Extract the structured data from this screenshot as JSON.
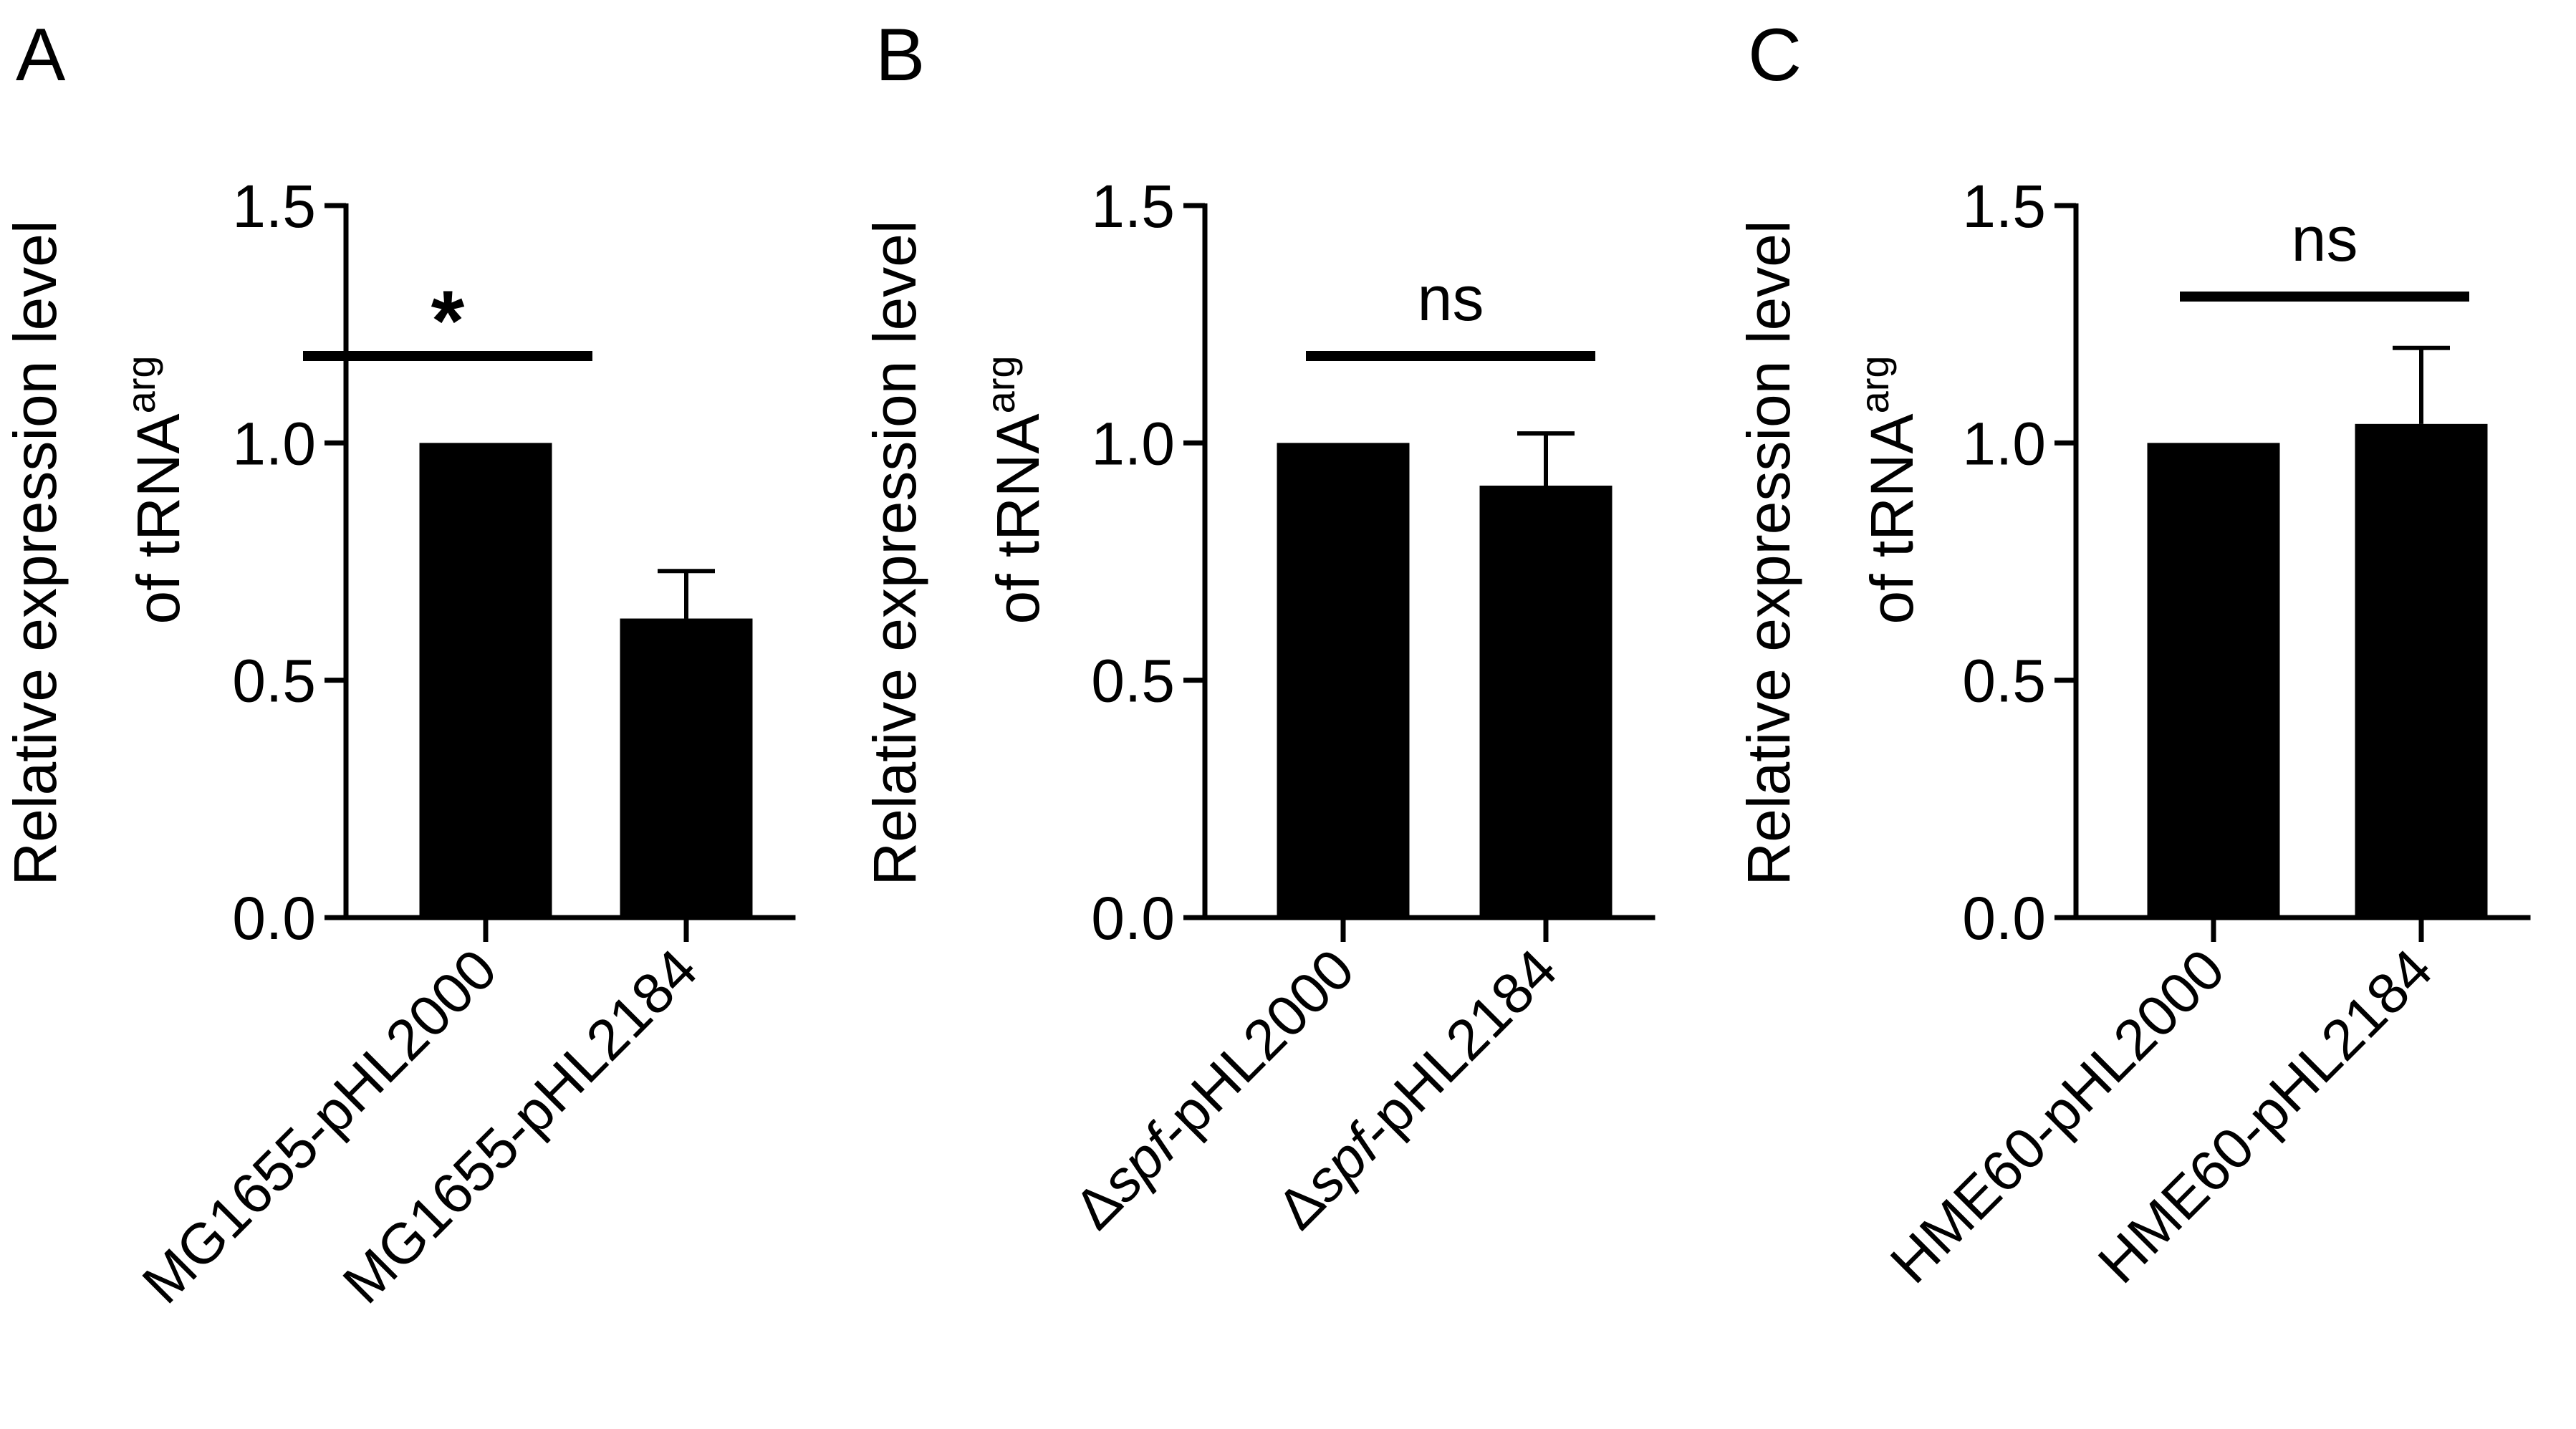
{
  "chart_data": [
    {
      "panel": "A",
      "type": "bar",
      "ylabel_line1": "Relative expression level",
      "ylabel_line2": "of tRNA",
      "ylabel_superscript": "arg",
      "ylim": [
        0,
        1.5
      ],
      "yticks": [
        "0.0",
        "0.5",
        "1.0",
        "1.5"
      ],
      "categories": [
        {
          "prefix": "",
          "italic": "",
          "suffix": "MG1655-pHL2000"
        },
        {
          "prefix": "",
          "italic": "",
          "suffix": "MG1655-pHL2184"
        }
      ],
      "values": [
        1.0,
        0.63
      ],
      "error": [
        0,
        0.1
      ],
      "significance": "*",
      "color": "#000000"
    },
    {
      "panel": "B",
      "type": "bar",
      "ylabel_line1": "Relative expression level",
      "ylabel_line2": "of tRNA",
      "ylabel_superscript": "arg",
      "ylim": [
        0,
        1.5
      ],
      "yticks": [
        "0.0",
        "0.5",
        "1.0",
        "1.5"
      ],
      "categories": [
        {
          "prefix": "Δ",
          "italic": "spf",
          "suffix": "-pHL2000"
        },
        {
          "prefix": "Δ",
          "italic": "spf",
          "suffix": "-pHL2184"
        }
      ],
      "values": [
        1.0,
        0.91
      ],
      "error": [
        0,
        0.11
      ],
      "significance": "ns",
      "color": "#000000"
    },
    {
      "panel": "C",
      "type": "bar",
      "ylabel_line1": "Relative expression level",
      "ylabel_line2": "of tRNA",
      "ylabel_superscript": "arg",
      "ylim": [
        0,
        1.5
      ],
      "yticks": [
        "0.0",
        "0.5",
        "1.0",
        "1.5"
      ],
      "categories": [
        {
          "prefix": "",
          "italic": "",
          "suffix": "HME60-pHL2000"
        },
        {
          "prefix": "",
          "italic": "",
          "suffix": "HME60-pHL2184"
        }
      ],
      "values": [
        1.0,
        1.04
      ],
      "error": [
        0,
        0.16
      ],
      "significance": "ns",
      "color": "#000000"
    }
  ]
}
